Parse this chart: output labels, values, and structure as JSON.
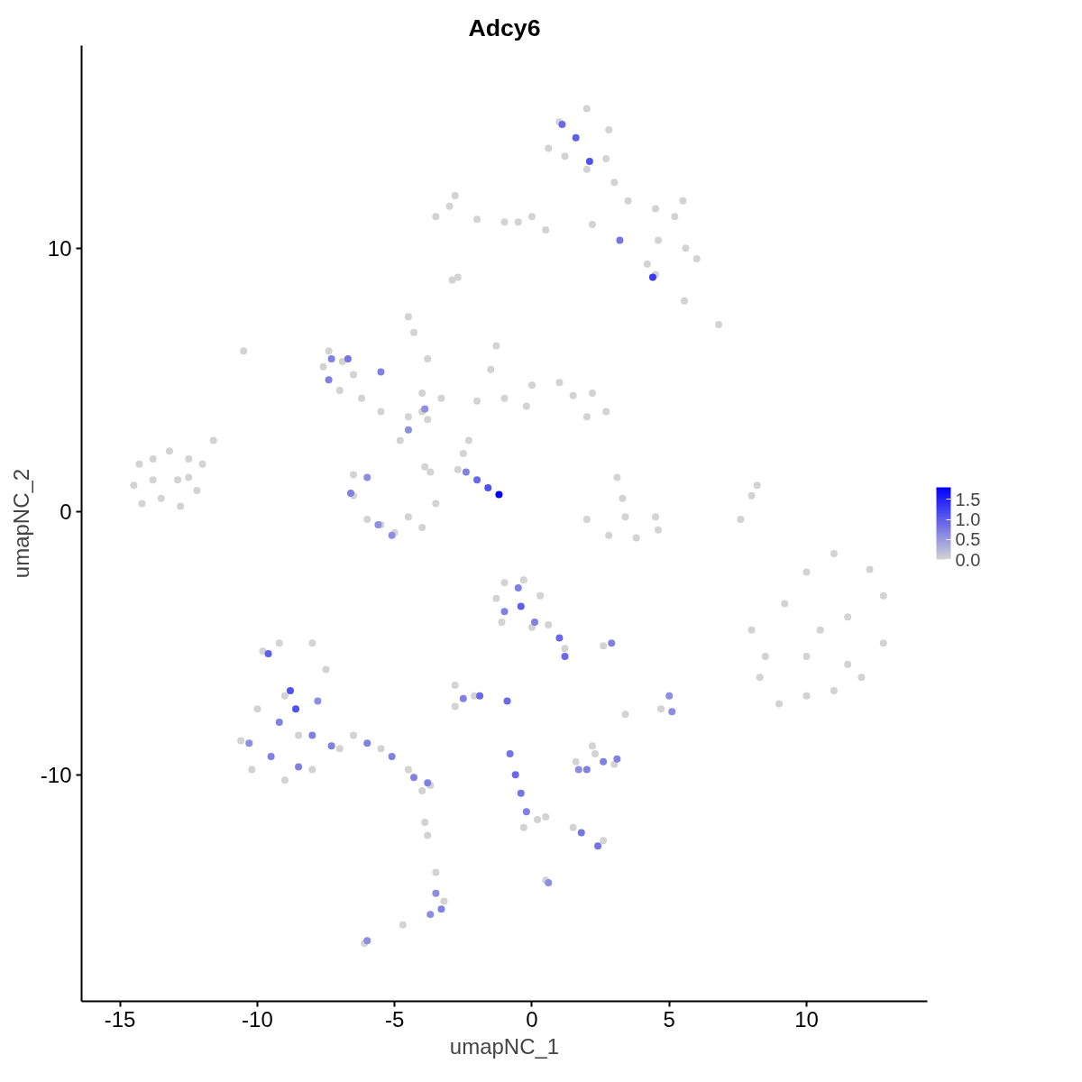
{
  "chart_data": {
    "type": "scatter",
    "title": "Adcy6",
    "xlabel": "umapNC_1",
    "ylabel": "umapNC_2",
    "xlim": [
      -16.4,
      14.4
    ],
    "ylim": [
      -18.6,
      17.7
    ],
    "xticks": [
      -15,
      -10,
      -5,
      0,
      5,
      10
    ],
    "yticks": [
      -10,
      0,
      10
    ],
    "grid": false,
    "marker": "circle",
    "clim": [
      0,
      1.8
    ],
    "cticks": [
      {
        "value": 0,
        "label": "0.0"
      },
      {
        "value": 0.5,
        "label": "0.5"
      },
      {
        "value": 1,
        "label": "1.0"
      },
      {
        "value": 1.5,
        "label": "1.5"
      }
    ],
    "colors": [
      "#d3d3d3",
      "#0000ff"
    ],
    "series": [
      {
        "x": [
          -14.5,
          -14.3,
          -13.8,
          -13.2,
          -12.5,
          -12.0,
          -11.6,
          -12.2,
          -12.8,
          -13.5,
          -14.2,
          -13.8,
          -12.9,
          -12.5,
          1.0,
          2.0,
          2.8,
          1.2,
          2.0,
          2.7,
          0.6,
          3.0,
          3.5,
          4.5,
          5.5,
          5.2,
          4.6,
          5.6,
          6.0,
          4.2,
          4.5,
          0,
          -1,
          -2,
          -3,
          -2.8,
          -3.5,
          -0.5,
          0.5,
          2.2,
          -2.7,
          -2.9,
          6.8,
          5.55,
          -7.6,
          -7.4,
          -6.9,
          -6.5,
          -7.0,
          -6.2,
          -5.5,
          -4.5,
          -4.0,
          -3.8,
          -4.5,
          -4.3,
          -3.8,
          -3.3,
          -4.0,
          -10.5,
          -6.5,
          -6.5,
          -6.0,
          -5.0,
          -4.0,
          -3.5,
          -3.7,
          -3.9,
          -4.5,
          -5.5,
          -4.8,
          -1.3,
          -1.5,
          -2.0,
          -1.0,
          0,
          -0.2,
          1.0,
          1.5,
          2.2,
          2.7,
          2.0,
          -2.3,
          -2.5,
          -2.7,
          3.1,
          3.3,
          3.4,
          2.0,
          2.8,
          3.8,
          4.6,
          4.5,
          7.6,
          8.0,
          8.2,
          8.0,
          8.5,
          8.3,
          9.0,
          10.0,
          11.0,
          12.0,
          12.8,
          12.8,
          12.3,
          11.0,
          10.0,
          9.2,
          10.5,
          11.5,
          10.0,
          11.5,
          -9.8,
          -9.2,
          -8.0,
          -7.5,
          -10.0,
          -10.6,
          -10.2,
          -9.0,
          -8.0,
          -7.0,
          -6.5,
          -5.5,
          -4.5,
          -3.7,
          -4.0,
          -9.0,
          -8.5,
          -1.0,
          -0.3,
          0.3,
          0.6,
          -1.1,
          -1.3,
          0,
          1.2,
          -2.8,
          -2.1,
          -2.8,
          2.6,
          3.4,
          4.7,
          1.6,
          2.3,
          3.0,
          2.2,
          -0.3,
          0.2,
          0.5,
          1.5,
          2.6,
          0.5,
          -3.9,
          -3.8,
          -3.5,
          -3.2,
          -4.7,
          -6.1,
          1.1,
          1.6,
          2.1,
          4.4,
          3.2,
          -7.3,
          -6.7,
          -5.5,
          -7.4,
          -3.9,
          -6.6,
          -5.6,
          -5.1,
          -6.0,
          -4.5,
          -2.4,
          -2.0,
          -1.6,
          -1.2,
          -9.6,
          -8.8,
          -9.2,
          -8.0,
          -9.5,
          -8.5,
          -7.3,
          -6.0,
          -5.1,
          -4.3,
          -3.8,
          -10.3,
          -7.8,
          -8.6,
          -0.5,
          -0.4,
          -1.0,
          0.1,
          1.0,
          1.2,
          -2.5,
          -1.9,
          -0.9,
          2.9,
          5.0,
          5.1,
          2.0,
          2.6,
          3.1,
          1.7,
          -0.8,
          -0.6,
          -0.4,
          -0.2,
          1.8,
          2.4,
          0.6,
          -3.5,
          -3.3,
          -3.7,
          -6.0
        ],
        "values": [
          1.0,
          1.8,
          2.0,
          2.3,
          2.0,
          1.8,
          2.7,
          0.8,
          0.2,
          0.5,
          0.3,
          1.2,
          1.2,
          1.3,
          14.8,
          15.3,
          14.5,
          13.5,
          13.0,
          13.4,
          13.8,
          12.5,
          11.8,
          11.5,
          11.8,
          11.2,
          10.3,
          10.0,
          9.6,
          9.4,
          9.0,
          11.2,
          11.0,
          11.1,
          11.6,
          12.0,
          11.2,
          11.0,
          10.7,
          10.9,
          8.9,
          8.8,
          7.1,
          8.0,
          5.5,
          6.1,
          5.7,
          5.2,
          4.6,
          4.3,
          3.8,
          3.6,
          3.8,
          3.5,
          7.4,
          6.8,
          5.8,
          4.3,
          4.5,
          6.1,
          1.4,
          0.6,
          -0.3,
          -0.8,
          -0.6,
          0.3,
          1.5,
          1.7,
          -0.2,
          -0.5,
          2.7,
          6.3,
          5.4,
          4.2,
          4.3,
          4.8,
          4.0,
          4.9,
          4.4,
          4.5,
          3.8,
          3.6,
          2.7,
          2.2,
          1.6,
          1.3,
          0.5,
          -0.2,
          -0.3,
          -0.9,
          -1.0,
          -0.7,
          -0.2,
          -0.3,
          0.6,
          1.0,
          -4.5,
          -5.5,
          -6.3,
          -7.3,
          -7.0,
          -6.8,
          -6.3,
          -5.0,
          -3.2,
          -2.2,
          -1.6,
          -2.3,
          -3.5,
          -4.5,
          -4.0,
          -5.5,
          -5.8,
          -5.3,
          -5.0,
          -5.0,
          -6.0,
          -7.5,
          -8.7,
          -9.8,
          -10.2,
          -9.8,
          -9.0,
          -8.5,
          -9.0,
          -9.8,
          -10.4,
          -10.6,
          -7.0,
          -8.5,
          -2.7,
          -2.6,
          -3.2,
          -4.3,
          -4.2,
          -3.3,
          -4.4,
          -5.2,
          -6.6,
          -7.0,
          -7.4,
          -5.1,
          -7.7,
          -7.5,
          -9.5,
          -9.2,
          -9.6,
          -8.9,
          -12.0,
          -11.7,
          -11.6,
          -12.0,
          -12.5,
          -14.0,
          -11.8,
          -12.3,
          -13.7,
          -14.8,
          -15.7,
          -16.4,
          14.7,
          14.2,
          13.3,
          8.9,
          10.3,
          5.8,
          5.8,
          5.3,
          5.0,
          3.9,
          0.7,
          -0.5,
          -0.9,
          1.3,
          3.1,
          1.5,
          1.2,
          0.9,
          0.65,
          -5.4,
          -6.8,
          -8.0,
          -8.5,
          -9.3,
          -9.7,
          -8.9,
          -8.8,
          -9.3,
          -10.1,
          -10.3,
          -8.8,
          -7.2,
          -7.5,
          -2.9,
          -3.6,
          -3.8,
          -4.2,
          -4.8,
          -5.5,
          -7.1,
          -7.0,
          -7.2,
          -5.0,
          -7.0,
          -7.6,
          -9.8,
          -9.5,
          -9.4,
          -9.8,
          -9.2,
          -10.0,
          -10.7,
          -11.4,
          -12.2,
          -12.7,
          -14.1,
          -14.5,
          -15.1,
          -15.3,
          -16.3
        ],
        "cvalues": [
          0,
          0,
          0,
          0,
          0,
          0,
          0,
          0,
          0,
          0,
          0,
          0,
          0,
          0,
          0,
          0,
          0,
          0,
          0,
          0,
          0,
          0,
          0,
          0,
          0,
          0,
          0,
          0,
          0,
          0,
          0,
          0,
          0,
          0,
          0,
          0,
          0,
          0,
          0,
          0,
          0,
          0,
          0,
          0,
          0,
          0,
          0,
          0,
          0,
          0,
          0,
          0,
          0,
          0,
          0,
          0,
          0,
          0,
          0,
          0,
          0,
          0,
          0,
          0,
          0,
          0,
          0,
          0,
          0,
          0,
          0,
          0,
          0,
          0,
          0,
          0,
          0,
          0,
          0,
          0,
          0,
          0,
          0,
          0,
          0,
          0,
          0,
          0,
          0,
          0,
          0,
          0,
          0,
          0,
          0,
          0,
          0,
          0,
          0,
          0,
          0,
          0,
          0,
          0,
          0,
          0,
          0,
          0,
          0,
          0,
          0,
          0,
          0,
          0,
          0,
          0,
          0,
          0,
          0,
          0,
          0,
          0,
          0,
          0,
          0,
          0,
          0,
          0,
          0,
          0,
          0,
          0,
          0,
          0,
          0,
          0,
          0,
          0,
          0,
          0,
          0,
          0,
          0,
          0,
          0,
          0,
          0,
          0,
          0,
          0,
          0,
          0,
          0,
          0,
          0,
          0,
          0,
          0,
          0,
          0,
          0.9,
          1.0,
          1.1,
          1.3,
          0.8,
          0.7,
          0.8,
          0.7,
          0.7,
          0.6,
          0.7,
          0.6,
          0.6,
          0.6,
          0.6,
          0.7,
          0.9,
          1.1,
          1.8,
          1.0,
          1.1,
          0.7,
          0.7,
          0.7,
          0.7,
          0.7,
          0.7,
          0.7,
          0.7,
          0.7,
          0.6,
          0.6,
          1.1,
          0.7,
          1.0,
          0.7,
          0.7,
          0.9,
          0.9,
          0.7,
          0.9,
          0.9,
          0.7,
          0.6,
          0.6,
          0.7,
          0.7,
          0.7,
          0.6,
          0.8,
          0.9,
          0.8,
          0.7,
          0.8,
          0.8,
          0.6,
          0.6,
          0.7,
          0.6,
          0.6
        ]
      }
    ]
  }
}
